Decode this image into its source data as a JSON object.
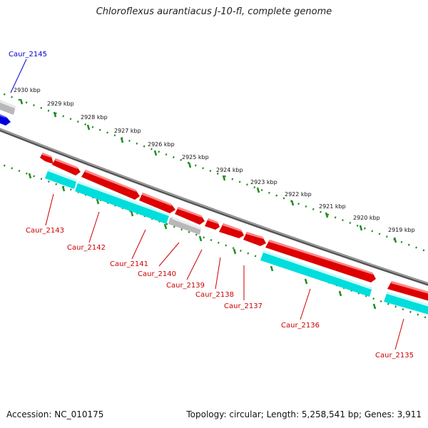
{
  "title": "Chloroflexus aurantiacus J-10-fl, complete genome",
  "footer": {
    "accession": "Accession: NC_010175",
    "topology": "Topology: circular; Length: 5,258,541 bp; Genes: 3,911"
  },
  "colors": {
    "forward_cds": "#ee0000",
    "reverse_cds": "#00e5ee",
    "rna_or_other": "#bbbbbb",
    "highlight": "#0000cc",
    "backbone": "#777777",
    "tick": "#228b22",
    "label_red": "#cc0000",
    "label_blue": "#0000cc"
  },
  "kbp_labels": [
    "2930 kbp",
    "2929 kbp",
    "2928 kbp",
    "2927 kbp",
    "2926 kbp",
    "2925 kbp",
    "2924 kbp",
    "2923 kbp",
    "2922 kbp",
    "2921 kbp",
    "2920 kbp",
    "2919 kbp"
  ],
  "gene_labels": [
    {
      "text": "Caur_2145",
      "color": "blue"
    },
    {
      "text": "Caur_2143",
      "color": "red"
    },
    {
      "text": "Caur_2142",
      "color": "red"
    },
    {
      "text": "Caur_2141",
      "color": "red"
    },
    {
      "text": "Caur_2140",
      "color": "red"
    },
    {
      "text": "Caur_2139",
      "color": "red"
    },
    {
      "text": "Caur_2138",
      "color": "red"
    },
    {
      "text": "Caur_2137",
      "color": "red"
    },
    {
      "text": "Caur_2136",
      "color": "red"
    },
    {
      "text": "Caur_2135",
      "color": "red"
    }
  ]
}
